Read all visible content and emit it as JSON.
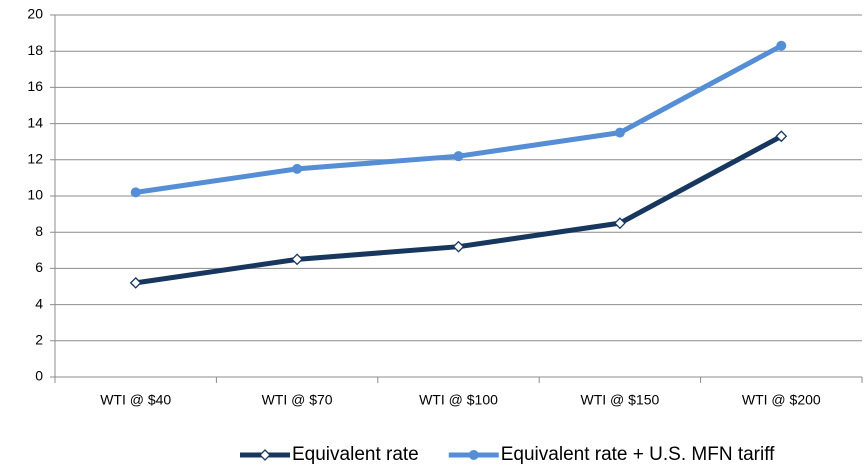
{
  "chart_data": {
    "type": "line",
    "categories": [
      "WTI @ $40",
      "WTI @ $70",
      "WTI @ $100",
      "WTI @ $150",
      "WTI @ $200"
    ],
    "series": [
      {
        "name": "Equivalent rate",
        "color": "#17375e",
        "marker": "diamond",
        "values": [
          5.2,
          6.5,
          7.2,
          8.5,
          13.3
        ]
      },
      {
        "name": "Equivalent rate + U.S. MFN tariff",
        "color": "#558ed5",
        "marker": "circle",
        "values": [
          10.2,
          11.5,
          12.2,
          13.5,
          18.3
        ]
      }
    ],
    "ylim": [
      0,
      20
    ],
    "yticks": [
      0,
      2,
      4,
      6,
      8,
      10,
      12,
      14,
      16,
      18,
      20
    ],
    "grid": true,
    "legend": "bottom"
  }
}
